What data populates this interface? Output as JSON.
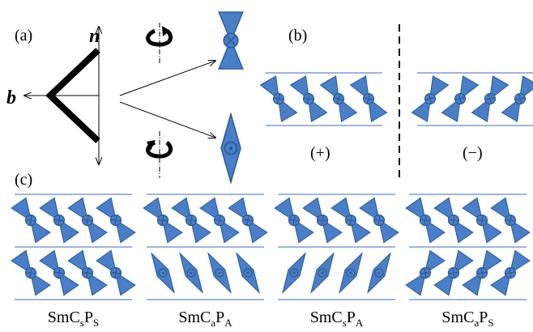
{
  "panel_a": {
    "label": "(a)",
    "n": "n",
    "b": "b"
  },
  "panel_b": {
    "label": "(b)",
    "plus": "(+)",
    "minus": "(−)"
  },
  "panel_c": {
    "label": "(c)",
    "phases": [
      {
        "base": "SmC",
        "sub1": "s",
        "mid": "P",
        "sub2": "S"
      },
      {
        "base": "SmC",
        "sub1": "a",
        "mid": "P",
        "sub2": "A"
      },
      {
        "base": "SmC",
        "sub1": "s",
        "mid": "P",
        "sub2": "A"
      },
      {
        "base": "SmC",
        "sub1": "a",
        "mid": "P",
        "sub2": "S"
      }
    ]
  }
}
